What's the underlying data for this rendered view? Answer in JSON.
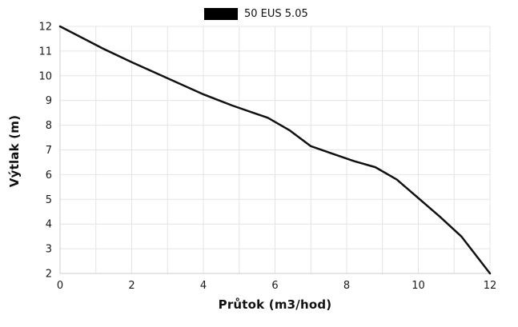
{
  "legend": {
    "label": "50 EUS 5.05",
    "swatch_color": "#000000"
  },
  "chart_data": {
    "type": "line",
    "title": "",
    "xlabel": "Průtok (m3/hod)",
    "ylabel": "Výtlak (m)",
    "xlim": [
      0,
      12
    ],
    "ylim": [
      2,
      12
    ],
    "x_ticks": [
      0,
      2,
      4,
      6,
      8,
      10,
      12
    ],
    "y_ticks": [
      2,
      3,
      4,
      5,
      6,
      7,
      8,
      9,
      10,
      11,
      12
    ],
    "x_grid_step": 1,
    "grid": true,
    "legend_position": "top-center",
    "series": [
      {
        "name": "50 EUS 5.05",
        "color": "#111111",
        "x": [
          0,
          0.6,
          1.2,
          2,
          3,
          4,
          4.8,
          5.4,
          5.8,
          6.4,
          7,
          7.6,
          8.2,
          8.8,
          9.4,
          10,
          10.6,
          11.2,
          12
        ],
        "y": [
          12,
          11.55,
          11.1,
          10.55,
          9.9,
          9.25,
          8.8,
          8.5,
          8.3,
          7.8,
          7.15,
          6.85,
          6.55,
          6.3,
          5.8,
          5.05,
          4.3,
          3.5,
          2
        ]
      }
    ]
  },
  "colors": {
    "grid": "#e4e4e4",
    "axis_border": "#cccccc",
    "tick_text": "#1a1a1a",
    "line": "#111111",
    "background": "#ffffff"
  }
}
